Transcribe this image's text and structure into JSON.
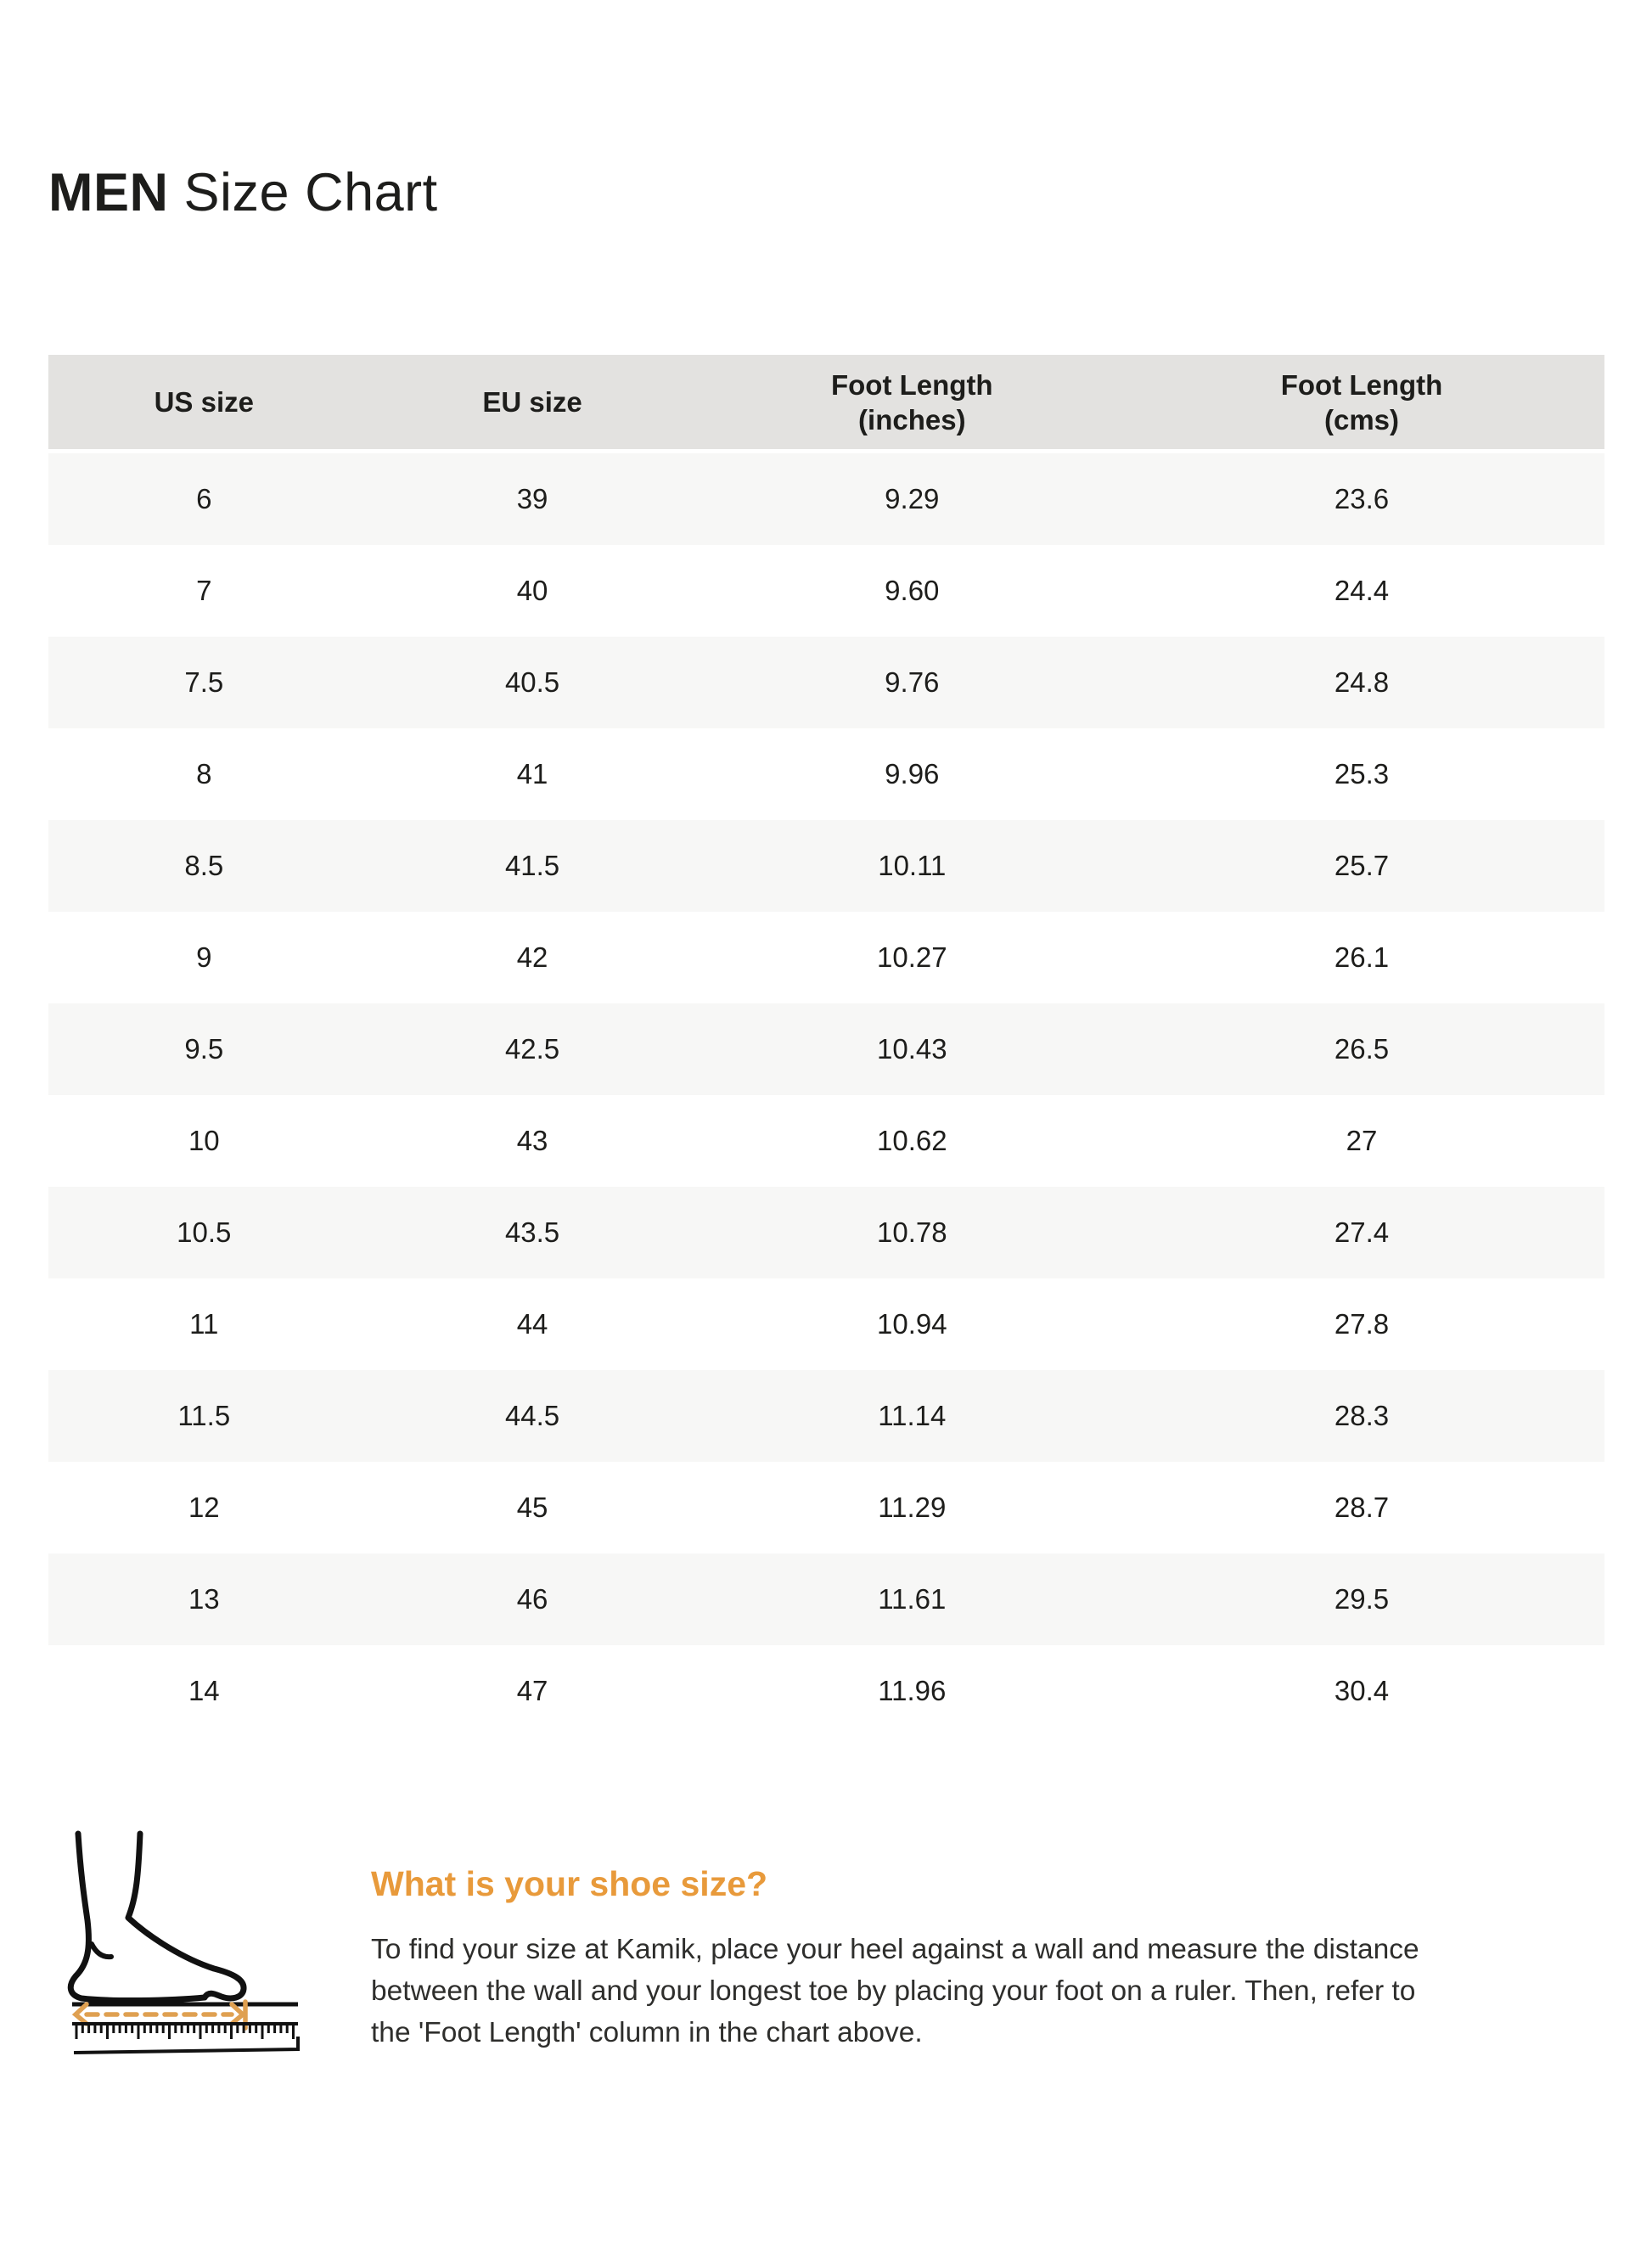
{
  "page": {
    "title_bold": "MEN",
    "title_rest": "Size Chart"
  },
  "table": {
    "headers": [
      [
        "US size"
      ],
      [
        "EU size"
      ],
      [
        "Foot Length",
        "(inches)"
      ],
      [
        "Foot Length",
        "(cms)"
      ]
    ],
    "rows": [
      [
        "6",
        "39",
        "9.29",
        "23.6"
      ],
      [
        "7",
        "40",
        "9.60",
        "24.4"
      ],
      [
        "7.5",
        "40.5",
        "9.76",
        "24.8"
      ],
      [
        "8",
        "41",
        "9.96",
        "25.3"
      ],
      [
        "8.5",
        "41.5",
        "10.11",
        "25.7"
      ],
      [
        "9",
        "42",
        "10.27",
        "26.1"
      ],
      [
        "9.5",
        "42.5",
        "10.43",
        "26.5"
      ],
      [
        "10",
        "43",
        "10.62",
        "27"
      ],
      [
        "10.5",
        "43.5",
        "10.78",
        "27.4"
      ],
      [
        "11",
        "44",
        "10.94",
        "27.8"
      ],
      [
        "11.5",
        "44.5",
        "11.14",
        "28.3"
      ],
      [
        "12",
        "45",
        "11.29",
        "28.7"
      ],
      [
        "13",
        "46",
        "11.61",
        "29.5"
      ],
      [
        "14",
        "47",
        "11.96",
        "30.4"
      ]
    ]
  },
  "footer": {
    "heading": "What is your shoe size?",
    "paragraph_lines": [
      "To find your size at Kamik, place your heel against a wall and measure the distance",
      "between the wall and your longest toe by placing your foot on a ruler. Then, refer to",
      "the 'Foot Length' column in the chart above."
    ],
    "icon": "foot-on-ruler-icon"
  },
  "colors": {
    "accent_orange": "#e89a3b",
    "arrow_tan": "#dfa051",
    "header_bg": "#e3e2e0",
    "row_alt_bg": "#f7f7f6",
    "text": "#1d1d1b"
  }
}
